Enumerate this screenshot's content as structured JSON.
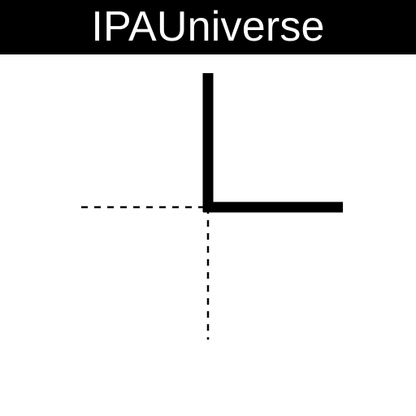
{
  "header": {
    "title": "IPAUniverse"
  },
  "colors": {
    "header_background": "#000000",
    "header_text": "#ffffff",
    "canvas_background": "#ffffff",
    "stroke": "#000000"
  }
}
